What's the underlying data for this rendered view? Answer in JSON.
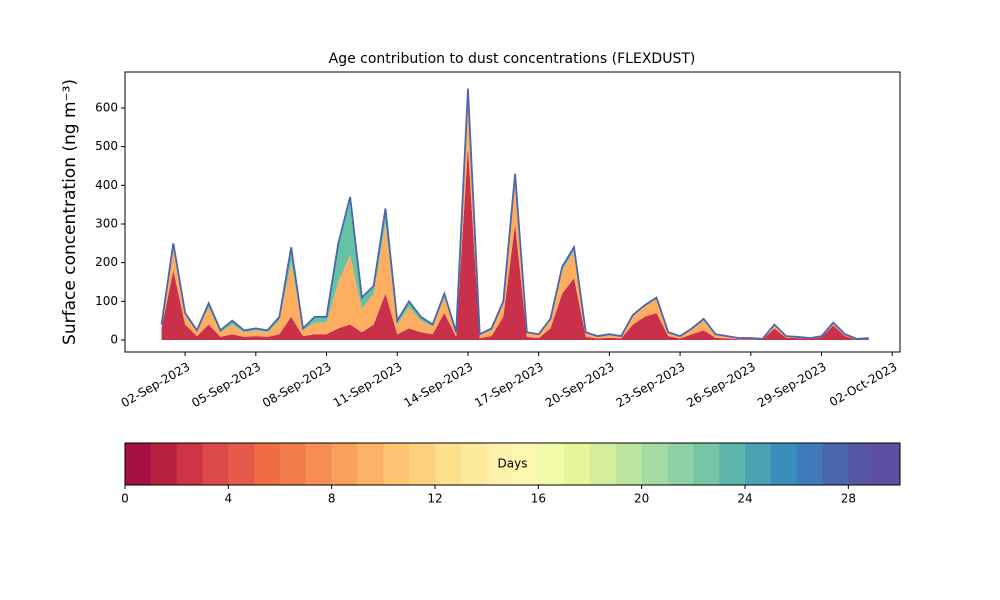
{
  "chart_data": {
    "type": "stackedarea",
    "title": "Age contribution to dust concentrations (FLEXDUST)",
    "y_label": "Surface concentration (ng m⁻³)",
    "x": [
      1.0,
      1.5,
      2.0,
      2.5,
      3.0,
      3.5,
      4.0,
      4.5,
      5.0,
      5.5,
      6.0,
      6.5,
      7.0,
      7.5,
      8.0,
      8.5,
      9.0,
      9.5,
      10.0,
      10.5,
      11.0,
      11.5,
      12.0,
      12.5,
      13.0,
      13.5,
      14.0,
      14.5,
      15.0,
      15.5,
      16.0,
      16.5,
      17.0,
      17.5,
      18.0,
      18.5,
      19.0,
      19.5,
      20.0,
      20.5,
      21.0,
      21.5,
      22.0,
      22.5,
      23.0,
      23.5,
      24.0,
      24.5,
      25.0,
      25.5,
      26.0,
      26.5,
      27.0,
      27.5,
      28.0,
      28.5,
      29.0,
      29.5,
      30.0,
      30.5,
      31.0
    ],
    "series": [
      {
        "color": "#c9304a",
        "values": [
          30,
          180,
          40,
          10,
          40,
          8,
          15,
          8,
          10,
          8,
          15,
          60,
          10,
          15,
          15,
          30,
          40,
          20,
          40,
          120,
          15,
          30,
          20,
          15,
          70,
          8,
          500,
          5,
          10,
          60,
          300,
          8,
          5,
          30,
          120,
          160,
          8,
          4,
          6,
          4,
          40,
          60,
          70,
          10,
          4,
          15,
          25,
          6,
          4,
          2,
          2,
          1,
          30,
          6,
          5,
          3,
          7,
          38,
          10,
          1,
          3
        ]
      },
      {
        "color": "#fdae61",
        "values": [
          8,
          60,
          25,
          12,
          45,
          12,
          25,
          12,
          15,
          12,
          35,
          140,
          15,
          30,
          30,
          120,
          180,
          60,
          80,
          180,
          25,
          55,
          30,
          20,
          40,
          10,
          130,
          8,
          15,
          35,
          110,
          10,
          8,
          20,
          60,
          70,
          10,
          5,
          7,
          5,
          22,
          27,
          35,
          8,
          5,
          12,
          25,
          7,
          5,
          2,
          2,
          1,
          8,
          3,
          2,
          1,
          2,
          5,
          4,
          1,
          1
        ]
      },
      {
        "color": "#66c2a5",
        "values": [
          2,
          10,
          5,
          3,
          10,
          5,
          10,
          5,
          5,
          5,
          10,
          40,
          5,
          15,
          15,
          100,
          150,
          30,
          20,
          40,
          10,
          15,
          10,
          5,
          10,
          2,
          20,
          2,
          5,
          5,
          20,
          2,
          2,
          5,
          10,
          10,
          2,
          1,
          2,
          1,
          3,
          3,
          5,
          2,
          1,
          3,
          5,
          2,
          1,
          1,
          1,
          1,
          2,
          1,
          1,
          1,
          1,
          2,
          1,
          1,
          1
        ]
      }
    ],
    "outline_color": "#4a67ad",
    "xlim": [
      -0.55,
      32.33
    ],
    "xticks": [
      {
        "value": 2,
        "label": "02-Sep-2023"
      },
      {
        "value": 5,
        "label": "05-Sep-2023"
      },
      {
        "value": 8,
        "label": "08-Sep-2023"
      },
      {
        "value": 11,
        "label": "11-Sep-2023"
      },
      {
        "value": 14,
        "label": "14-Sep-2023"
      },
      {
        "value": 17,
        "label": "17-Sep-2023"
      },
      {
        "value": 20,
        "label": "20-Sep-2023"
      },
      {
        "value": 23,
        "label": "23-Sep-2023"
      },
      {
        "value": 26,
        "label": "26-Sep-2023"
      },
      {
        "value": 29,
        "label": "29-Sep-2023"
      },
      {
        "value": 32,
        "label": "02-Oct-2023"
      }
    ],
    "ylim": [
      -31,
      693
    ],
    "yticks": [
      0,
      100,
      200,
      300,
      400,
      500,
      600
    ],
    "grid": false,
    "colorbar": {
      "label": "Days",
      "lim": [
        0,
        30
      ],
      "ticks": [
        0,
        4,
        8,
        12,
        16,
        20,
        24,
        28
      ],
      "colors": [
        "#a50f43",
        "#b8203f",
        "#cc3445",
        "#dc4a4c",
        "#e65b4b",
        "#ef6c45",
        "#f47d4d",
        "#f88f52",
        "#fba15b",
        "#fdb365",
        "#fec472",
        "#fed17f",
        "#fee08b",
        "#feea9c",
        "#fff2ad",
        "#fbf8b0",
        "#f3faa8",
        "#e6f598",
        "#d3ed9b",
        "#bee5a0",
        "#a6dba4",
        "#8ed1a4",
        "#76c6a5",
        "#5fb6ab",
        "#4aa2b2",
        "#3a8ebb",
        "#3f7bba",
        "#4a67ad",
        "#5756a5",
        "#5e4fa2"
      ]
    }
  }
}
